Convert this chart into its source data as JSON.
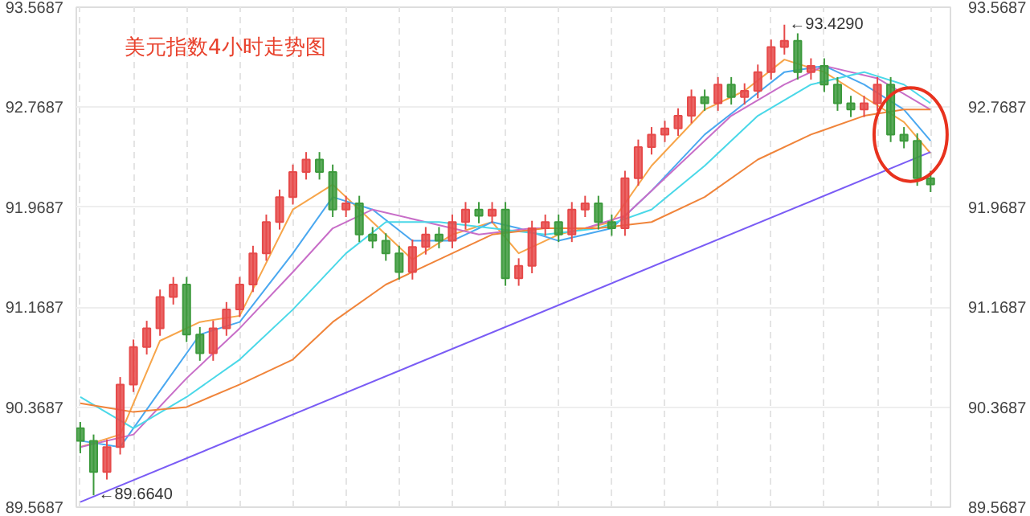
{
  "chart_data": {
    "type": "candlestick",
    "title": "美元指数4小时走势图",
    "categories": [
      null,
      null,
      null,
      null,
      null,
      null,
      null,
      null,
      null,
      null,
      null,
      null,
      null,
      null,
      null,
      null,
      null,
      null,
      null,
      null,
      null,
      null,
      null,
      null,
      null,
      null,
      null,
      null,
      null,
      null,
      null,
      null,
      null,
      null,
      null,
      null,
      null,
      null,
      null,
      null,
      null,
      null,
      null,
      null,
      null,
      null,
      null,
      null,
      null,
      null,
      null,
      null,
      null,
      null,
      null,
      null,
      null,
      null,
      null,
      null,
      null,
      null,
      null,
      null,
      null
    ],
    "ohlc": [
      [
        90.2,
        90.25,
        90.0,
        90.1
      ],
      [
        90.1,
        90.15,
        89.664,
        89.85
      ],
      [
        89.85,
        90.11,
        89.79,
        90.05
      ],
      [
        90.05,
        90.61,
        89.99,
        90.55
      ],
      [
        90.55,
        90.91,
        90.49,
        90.85
      ],
      [
        90.85,
        91.06,
        90.79,
        91.0
      ],
      [
        91.0,
        91.31,
        90.94,
        91.25
      ],
      [
        91.25,
        91.41,
        91.19,
        91.35
      ],
      [
        91.35,
        91.41,
        90.89,
        90.95
      ],
      [
        90.95,
        91.01,
        90.74,
        90.8
      ],
      [
        90.8,
        91.06,
        90.74,
        91.0
      ],
      [
        91.0,
        91.21,
        90.94,
        91.15
      ],
      [
        91.15,
        91.41,
        91.09,
        91.35
      ],
      [
        91.35,
        91.66,
        91.29,
        91.6
      ],
      [
        91.6,
        91.91,
        91.54,
        91.85
      ],
      [
        91.85,
        92.11,
        91.79,
        92.05
      ],
      [
        92.05,
        92.31,
        91.99,
        92.25
      ],
      [
        92.25,
        92.41,
        92.19,
        92.35
      ],
      [
        92.35,
        92.41,
        92.19,
        92.25
      ],
      [
        92.25,
        92.31,
        91.89,
        91.95
      ],
      [
        91.95,
        92.06,
        91.89,
        92.0
      ],
      [
        92.0,
        92.06,
        91.69,
        91.75
      ],
      [
        91.75,
        91.81,
        91.64,
        91.7
      ],
      [
        91.7,
        91.76,
        91.54,
        91.6
      ],
      [
        91.6,
        91.66,
        91.39,
        91.45
      ],
      [
        91.45,
        91.71,
        91.39,
        91.65
      ],
      [
        91.65,
        91.81,
        91.59,
        91.75
      ],
      [
        91.75,
        91.81,
        91.64,
        91.7
      ],
      [
        91.7,
        91.91,
        91.64,
        91.85
      ],
      [
        91.85,
        92.01,
        91.79,
        91.95
      ],
      [
        91.95,
        92.01,
        91.84,
        91.9
      ],
      [
        91.9,
        92.01,
        91.84,
        91.95
      ],
      [
        91.95,
        92.01,
        91.34,
        91.4
      ],
      [
        91.4,
        91.56,
        91.34,
        91.5
      ],
      [
        91.5,
        91.86,
        91.44,
        91.8
      ],
      [
        91.8,
        91.91,
        91.74,
        91.85
      ],
      [
        91.85,
        91.91,
        91.69,
        91.75
      ],
      [
        91.75,
        92.01,
        91.69,
        91.95
      ],
      [
        91.95,
        92.06,
        91.89,
        92.0
      ],
      [
        92.0,
        92.06,
        91.79,
        91.85
      ],
      [
        91.85,
        91.91,
        91.74,
        91.8
      ],
      [
        91.8,
        92.26,
        91.74,
        92.2
      ],
      [
        92.2,
        92.51,
        92.14,
        92.45
      ],
      [
        92.45,
        92.61,
        92.39,
        92.55
      ],
      [
        92.55,
        92.66,
        92.49,
        92.6
      ],
      [
        92.6,
        92.76,
        92.54,
        92.7
      ],
      [
        92.7,
        92.91,
        92.64,
        92.85
      ],
      [
        92.85,
        92.91,
        92.74,
        92.8
      ],
      [
        92.8,
        93.01,
        92.74,
        92.95
      ],
      [
        92.95,
        93.01,
        92.79,
        92.85
      ],
      [
        92.85,
        92.96,
        92.79,
        92.9
      ],
      [
        92.9,
        93.11,
        92.84,
        93.05
      ],
      [
        93.05,
        93.31,
        92.99,
        93.25
      ],
      [
        93.25,
        93.429,
        93.19,
        93.3
      ],
      [
        93.3,
        93.36,
        92.99,
        93.05
      ],
      [
        93.05,
        93.16,
        92.99,
        93.1
      ],
      [
        93.1,
        93.16,
        92.89,
        92.95
      ],
      [
        92.95,
        93.01,
        92.74,
        92.8
      ],
      [
        92.8,
        92.86,
        92.69,
        92.75
      ],
      [
        92.75,
        92.86,
        92.69,
        92.8
      ],
      [
        92.8,
        93.01,
        92.74,
        92.95
      ],
      [
        92.95,
        93.01,
        92.49,
        92.55
      ],
      [
        92.55,
        92.61,
        92.44,
        92.5
      ],
      [
        92.5,
        92.56,
        92.14,
        92.2
      ],
      [
        92.2,
        92.26,
        92.09,
        92.15
      ]
    ],
    "colors": [
      "#3d9a3d",
      "#3d9a3d",
      "#e64a4a",
      "#e64a4a",
      "#e64a4a",
      "#e64a4a",
      "#e64a4a",
      "#e64a4a",
      "#3d9a3d",
      "#3d9a3d",
      "#e64a4a",
      "#e64a4a",
      "#e64a4a",
      "#e64a4a",
      "#e64a4a",
      "#e64a4a",
      "#e64a4a",
      "#e64a4a",
      "#3d9a3d",
      "#3d9a3d",
      "#e64a4a",
      "#3d9a3d",
      "#3d9a3d",
      "#3d9a3d",
      "#3d9a3d",
      "#e64a4a",
      "#e64a4a",
      "#3d9a3d",
      "#e64a4a",
      "#e64a4a",
      "#3d9a3d",
      "#e64a4a",
      "#3d9a3d",
      "#e64a4a",
      "#e64a4a",
      "#e64a4a",
      "#3d9a3d",
      "#e64a4a",
      "#e64a4a",
      "#3d9a3d",
      "#3d9a3d",
      "#e64a4a",
      "#e64a4a",
      "#e64a4a",
      "#e64a4a",
      "#e64a4a",
      "#e64a4a",
      "#3d9a3d",
      "#e64a4a",
      "#3d9a3d",
      "#e64a4a",
      "#e64a4a",
      "#e64a4a",
      "#e64a4a",
      "#3d9a3d",
      "#e64a4a",
      "#3d9a3d",
      "#3d9a3d",
      "#3d9a3d",
      "#e64a4a",
      "#e64a4a",
      "#3d9a3d",
      "#3d9a3d",
      "#3d9a3d",
      "#3d9a3d"
    ],
    "series": [
      {
        "type": "line",
        "color": "#f7a54a",
        "values": [
          90.05,
          null,
          null,
          90.15,
          null,
          null,
          90.9,
          null,
          null,
          91.05,
          null,
          null,
          91.1,
          null,
          null,
          null,
          91.95,
          null,
          null,
          92.15,
          null,
          null,
          91.85,
          null,
          null,
          91.55,
          null,
          null,
          91.75,
          null,
          null,
          91.85,
          null,
          91.6,
          null,
          null,
          91.75,
          null,
          null,
          null,
          91.85,
          null,
          null,
          92.3,
          null,
          null,
          null,
          92.75,
          null,
          null,
          92.9,
          null,
          null,
          93.15,
          null,
          null,
          93.05,
          null,
          null,
          92.85,
          null,
          null,
          92.65,
          null,
          92.4
        ]
      },
      {
        "type": "line",
        "color": "#4aa8f0",
        "values": [
          90.1,
          null,
          null,
          90.05,
          null,
          null,
          90.5,
          null,
          null,
          90.95,
          null,
          null,
          91.05,
          null,
          null,
          null,
          91.6,
          null,
          null,
          92.05,
          null,
          null,
          91.95,
          null,
          null,
          91.7,
          null,
          null,
          91.7,
          null,
          null,
          91.85,
          null,
          91.8,
          null,
          null,
          91.7,
          null,
          null,
          null,
          91.8,
          null,
          null,
          92.1,
          null,
          null,
          null,
          92.55,
          null,
          null,
          92.8,
          null,
          null,
          93.05,
          null,
          null,
          93.1,
          null,
          null,
          92.95,
          null,
          null,
          92.75,
          null,
          92.5
        ]
      },
      {
        "type": "line",
        "color": "#c86ec8",
        "values": [
          90.05,
          null,
          null,
          null,
          90.15,
          null,
          null,
          null,
          90.6,
          null,
          null,
          null,
          91.0,
          null,
          null,
          null,
          91.45,
          null,
          null,
          91.8,
          null,
          null,
          91.95,
          null,
          null,
          null,
          91.85,
          null,
          null,
          null,
          91.75,
          null,
          null,
          null,
          91.8,
          null,
          null,
          null,
          91.8,
          null,
          null,
          91.9,
          null,
          null,
          null,
          92.3,
          null,
          null,
          null,
          92.7,
          null,
          null,
          null,
          92.95,
          null,
          null,
          93.1,
          null,
          null,
          null,
          93.0,
          null,
          null,
          null,
          92.75
        ]
      },
      {
        "type": "line",
        "color": "#4ad8e8",
        "values": [
          90.45,
          null,
          null,
          null,
          90.2,
          null,
          null,
          null,
          90.45,
          null,
          null,
          null,
          90.75,
          null,
          null,
          null,
          91.15,
          null,
          null,
          null,
          91.6,
          null,
          null,
          91.85,
          null,
          null,
          null,
          91.85,
          null,
          null,
          null,
          91.8,
          null,
          null,
          null,
          91.75,
          null,
          null,
          null,
          91.8,
          null,
          null,
          null,
          91.95,
          null,
          null,
          null,
          92.3,
          null,
          null,
          null,
          92.7,
          null,
          null,
          null,
          92.95,
          null,
          null,
          null,
          93.05,
          null,
          null,
          92.95,
          null,
          92.8
        ]
      },
      {
        "type": "line",
        "color": "#f0843a",
        "values": [
          90.4,
          null,
          null,
          null,
          90.33,
          null,
          null,
          null,
          90.37,
          null,
          null,
          null,
          90.55,
          null,
          null,
          null,
          90.75,
          null,
          null,
          91.05,
          null,
          null,
          null,
          91.35,
          null,
          null,
          null,
          91.55,
          null,
          null,
          null,
          91.75,
          null,
          null,
          null,
          91.8,
          null,
          null,
          null,
          91.8,
          null,
          null,
          null,
          91.85,
          null,
          null,
          null,
          92.05,
          null,
          null,
          null,
          92.35,
          null,
          null,
          null,
          92.55,
          null,
          null,
          null,
          92.7,
          null,
          null,
          92.75,
          null,
          92.75
        ]
      },
      {
        "type": "line",
        "color": "#7a5cf5",
        "values": [
          89.61,
          null,
          null,
          null,
          null,
          null,
          null,
          null,
          null,
          null,
          null,
          null,
          null,
          null,
          null,
          null,
          null,
          null,
          null,
          null,
          null,
          null,
          null,
          null,
          null,
          null,
          null,
          null,
          null,
          null,
          null,
          null,
          null,
          null,
          null,
          null,
          null,
          null,
          null,
          null,
          null,
          null,
          null,
          null,
          null,
          null,
          null,
          null,
          null,
          null,
          null,
          null,
          null,
          null,
          null,
          null,
          null,
          null,
          null,
          null,
          null,
          null,
          null,
          null,
          92.41
        ]
      }
    ],
    "ylim": [
      89.5687,
      93.5687
    ],
    "yticks": [
      89.5687,
      90.3687,
      91.1687,
      91.9687,
      92.7687,
      93.5687
    ],
    "y2lim": [
      89.5687,
      93.5687
    ],
    "y2ticks": [
      89.5687,
      90.3687,
      91.1687,
      91.9687,
      92.7687,
      93.5687
    ],
    "annotations": [
      "←93.4290",
      "←89.6640"
    ],
    "grid": true
  }
}
